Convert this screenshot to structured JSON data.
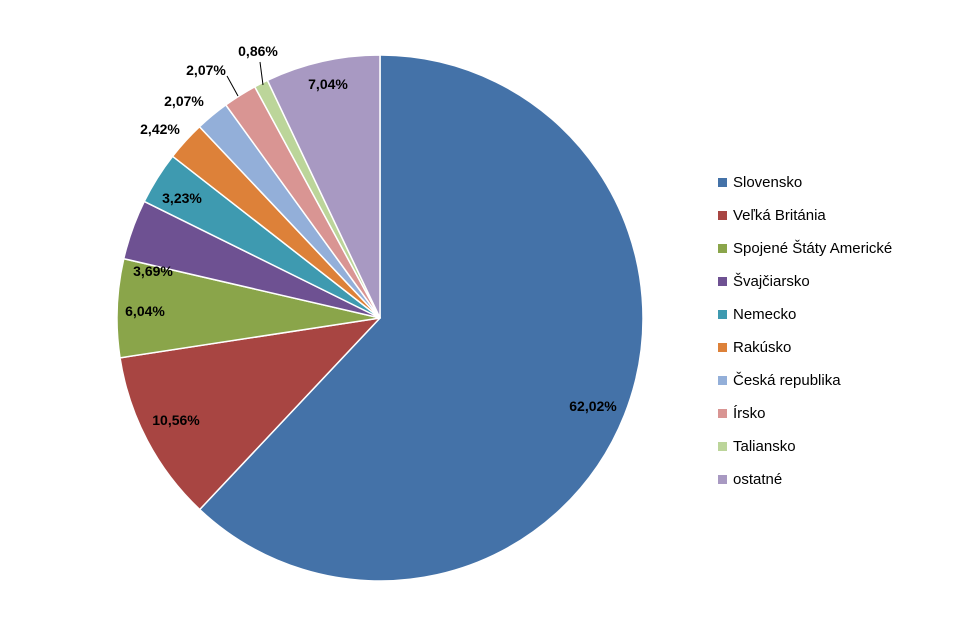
{
  "chart_data": {
    "type": "pie",
    "categories": [
      "Slovensko",
      "Veľká Británia",
      "Spojené Štáty Americké",
      "Švajčiarsko",
      "Nemecko",
      "Rakúsko",
      "Česká republika",
      "Írsko",
      "Taliansko",
      "ostatné"
    ],
    "values": [
      62.02,
      10.56,
      6.04,
      3.69,
      3.23,
      2.42,
      2.07,
      2.07,
      0.86,
      7.04
    ],
    "data_labels": [
      "62,02%",
      "10,56%",
      "6,04%",
      "3,69%",
      "3,23%",
      "2,42%",
      "2,07%",
      "2,07%",
      "0,86%",
      "7,04%"
    ],
    "colors": [
      "#4472A8",
      "#A84542",
      "#8AA54A",
      "#6E5192",
      "#3E9AB0",
      "#DD8139",
      "#93AFD9",
      "#D99593",
      "#BCD59A",
      "#A899C2"
    ],
    "title": "",
    "legend_position": "right",
    "start_angle": "12 o'clock",
    "direction": "clockwise"
  }
}
